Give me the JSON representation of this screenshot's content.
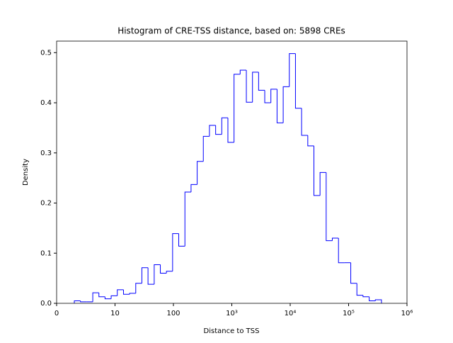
{
  "chart_data": {
    "type": "histogram",
    "title": "Histogram of CRE-TSS distance, based on: 5898 CREs",
    "x_label": "Distance to TSS",
    "y_label": "Density",
    "color": "#0000ff",
    "bins": [
      0.303,
      0.408,
      0.513,
      0.619,
      0.724,
      0.829,
      0.934,
      1.039,
      1.145,
      1.25,
      1.355,
      1.46,
      1.565,
      1.671,
      1.776,
      1.881,
      1.986,
      2.091,
      2.197,
      2.302,
      2.407,
      2.512,
      2.617,
      2.723,
      2.828,
      2.933,
      3.038,
      3.143,
      3.249,
      3.354,
      3.459,
      3.564,
      3.669,
      3.775,
      3.88,
      3.985,
      4.09,
      4.195,
      4.301,
      4.406,
      4.511,
      4.616,
      4.721,
      4.827,
      4.932,
      5.037,
      5.142,
      5.247,
      5.353,
      5.458,
      5.563
    ],
    "values": [
      0.005,
      0.003,
      0.003,
      0.021,
      0.013,
      0.009,
      0.015,
      0.027,
      0.018,
      0.02,
      0.04,
      0.071,
      0.038,
      0.077,
      0.06,
      0.064,
      0.139,
      0.114,
      0.222,
      0.237,
      0.283,
      0.333,
      0.355,
      0.337,
      0.37,
      0.321,
      0.457,
      0.465,
      0.401,
      0.461,
      0.425,
      0.4,
      0.427,
      0.36,
      0.432,
      0.498,
      0.389,
      0.335,
      0.314,
      0.215,
      0.261,
      0.125,
      0.13,
      0.081,
      0.081,
      0.04,
      0.016,
      0.013,
      0.005,
      0.007
    ],
    "xlim": [
      0,
      6
    ],
    "xticks": [
      0,
      {
        "value": 1,
        "label": "10"
      },
      {
        "value": 2,
        "label": "100"
      },
      {
        "value": 3,
        "label": "10³"
      },
      {
        "value": 4,
        "label": "10⁴"
      },
      {
        "value": 5,
        "label": "10⁵"
      },
      {
        "value": 6,
        "label": "10⁶"
      }
    ],
    "ylim": [
      0,
      0.523
    ],
    "yticks": [
      {
        "value": 0,
        "label": "0.0"
      },
      0.1,
      0.2,
      0.3,
      0.4,
      0.5
    ]
  }
}
